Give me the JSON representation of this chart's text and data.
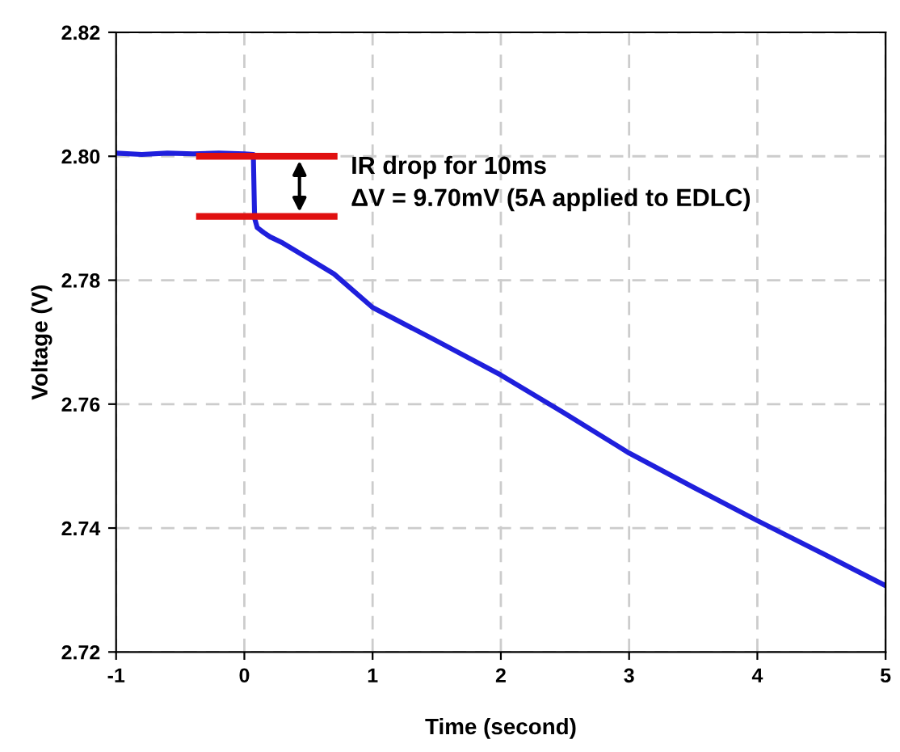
{
  "chart_data": {
    "type": "line",
    "xlabel": "Time (second)",
    "ylabel": "Voltage (V)",
    "series": [
      {
        "color": "#1f1fdc",
        "x": [
          -1,
          -0.8,
          -0.6,
          -0.4,
          -0.2,
          0,
          0.07,
          0.08,
          0.1,
          0.15,
          0.2,
          0.3,
          0.5,
          0.7,
          1,
          1.5,
          2,
          2.5,
          3,
          3.5,
          4,
          4.5,
          5
        ],
        "values": [
          2.8005,
          2.8003,
          2.8005,
          2.8004,
          2.8005,
          2.8004,
          2.8003,
          2.79,
          2.7885,
          2.7877,
          2.787,
          2.786,
          2.7835,
          2.781,
          2.7756,
          2.7702,
          2.7647,
          2.7585,
          2.7521,
          2.7466,
          2.7412,
          2.736,
          2.7307
        ]
      }
    ],
    "xlim": [
      -1,
      5
    ],
    "ylim": [
      2.72,
      2.82
    ],
    "xticks": [
      -1,
      0,
      1,
      2,
      3,
      4,
      5
    ],
    "yticks": [
      {
        "value": 2.72,
        "label": "2.72"
      },
      {
        "value": 2.74,
        "label": "2.74"
      },
      {
        "value": 2.76,
        "label": "2.76"
      },
      {
        "value": 2.78,
        "label": "2.78"
      },
      {
        "value": 2.8,
        "label": "2.80"
      },
      {
        "value": 2.82,
        "label": "2.82"
      }
    ],
    "grid": true,
    "line_style": "solid",
    "ref_lines": [
      {
        "axis": "y",
        "value": 2.8,
        "color": "#e01010"
      },
      {
        "axis": "y",
        "value": 2.7903,
        "color": "#e01010"
      }
    ],
    "annotations": [
      "IR drop for 10ms",
      "ΔV = 9.70mV (5A applied to EDLC)"
    ]
  }
}
